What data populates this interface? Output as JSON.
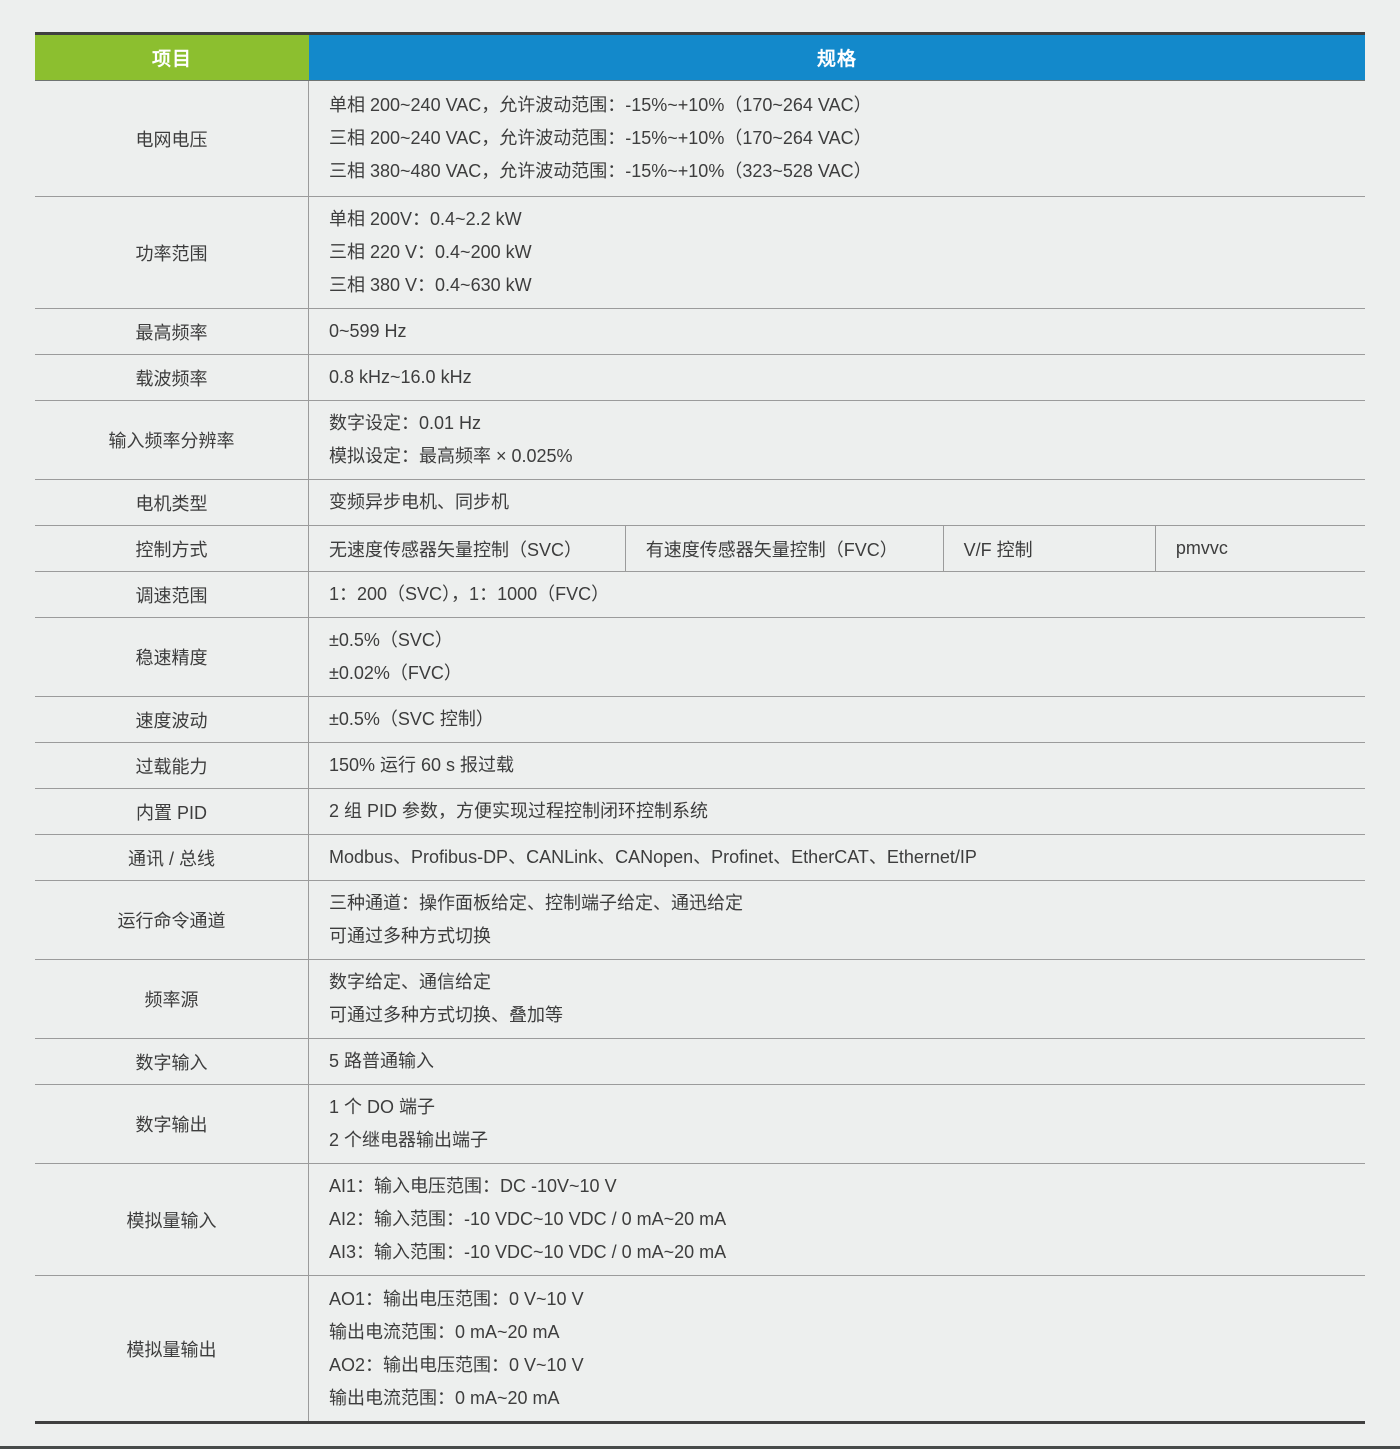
{
  "table": {
    "header": {
      "item": "项目",
      "spec": "规格"
    },
    "colors": {
      "page_bg": "#EDEFEE",
      "item_header_bg": "#8CBF2F",
      "spec_header_bg": "#1389CB",
      "header_text": "#FFFFFF",
      "body_text": "#3D3D3D",
      "row_line": "#9B9B9B",
      "frame_line": "#3F3F3F"
    },
    "rows": [
      {
        "label": "电网电压",
        "lines": [
          "单相 200~240 VAC，允许波动范围：-15%~+10%（170~264 VAC）",
          "三相 200~240 VAC，允许波动范围：-15%~+10%（170~264 VAC）",
          "三相 380~480 VAC，允许波动范围：-15%~+10%（323~528 VAC）"
        ]
      },
      {
        "label": "功率范围",
        "lines": [
          "单相 200V：0.4~2.2 kW",
          "三相 220 V：0.4~200 kW",
          "三相 380 V：0.4~630 kW"
        ]
      },
      {
        "label": "最高频率",
        "lines": [
          "0~599 Hz"
        ]
      },
      {
        "label": "载波频率",
        "lines": [
          "0.8 kHz~16.0 kHz"
        ]
      },
      {
        "label": "输入频率分辨率",
        "lines": [
          "数字设定：0.01 Hz",
          "模拟设定：最高频率 × 0.025%"
        ]
      },
      {
        "label": "电机类型",
        "lines": [
          "变频异步电机、同步机"
        ]
      },
      {
        "label": "控制方式",
        "cells": [
          "无速度传感器矢量控制（SVC）",
          "有速度传感器矢量控制（FVC）",
          "V/F 控制",
          "pmvvc"
        ]
      },
      {
        "label": "调速范围",
        "lines": [
          "1：200（SVC），1：1000（FVC）"
        ]
      },
      {
        "label": "稳速精度",
        "lines": [
          "±0.5%（SVC）",
          "±0.02%（FVC）"
        ]
      },
      {
        "label": "速度波动",
        "lines": [
          "±0.5%（SVC 控制）"
        ]
      },
      {
        "label": "过载能力",
        "lines": [
          "150% 运行 60 s 报过载"
        ]
      },
      {
        "label": "内置 PID",
        "lines": [
          "2 组 PID 参数，方便实现过程控制闭环控制系统"
        ]
      },
      {
        "label": "通讯 / 总线",
        "lines": [
          "Modbus、Profibus-DP、CANLink、CANopen、Profinet、EtherCAT、Ethernet/IP"
        ]
      },
      {
        "label": "运行命令通道",
        "lines": [
          "三种通道：操作面板给定、控制端子给定、通迅给定",
          "可通过多种方式切换"
        ]
      },
      {
        "label": "频率源",
        "lines": [
          "数字给定、通信给定",
          "可通过多种方式切换、叠加等"
        ]
      },
      {
        "label": "数字输入",
        "lines": [
          "5 路普通输入"
        ]
      },
      {
        "label": "数字输出",
        "lines": [
          "1 个 DO 端子",
          "2 个继电器输出端子"
        ]
      },
      {
        "label": "模拟量输入",
        "lines": [
          "AI1：输入电压范围：DC -10V~10 V",
          "AI2：输入范围：-10 VDC~10 VDC / 0 mA~20 mA",
          "AI3：输入范围：-10 VDC~10 VDC / 0 mA~20 mA"
        ]
      },
      {
        "label": "模拟量输出",
        "lines": [
          "AO1：输出电压范围：0 V~10 V",
          "输出电流范围：0 mA~20 mA",
          "AO2：输出电压范围：0 V~10 V",
          "输出电流范围：0 mA~20 mA"
        ]
      }
    ]
  }
}
